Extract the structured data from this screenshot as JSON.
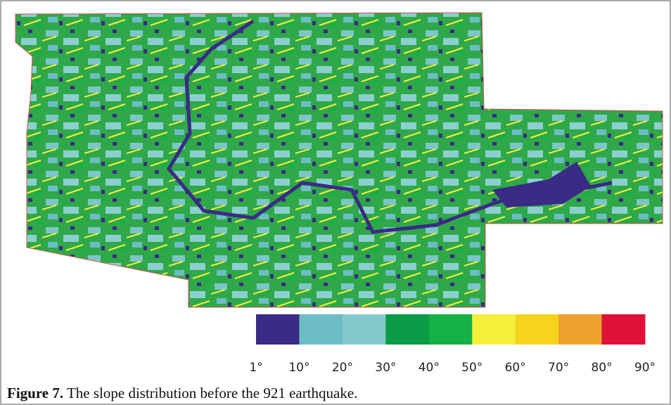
{
  "figure": {
    "legend": {
      "colors": [
        "#3b2a86",
        "#6dbdc4",
        "#84cacd",
        "#0b9a45",
        "#15b146",
        "#f4f03a",
        "#f6d31c",
        "#eea12c",
        "#de113b"
      ],
      "labels": [
        "1°",
        "10°",
        "20°",
        "30°",
        "40°",
        "50°",
        "60°",
        "70°",
        "80°",
        "90°"
      ]
    },
    "caption": {
      "label": "Figure 7.",
      "text": "The slope distribution before the 921 earthquake."
    }
  }
}
